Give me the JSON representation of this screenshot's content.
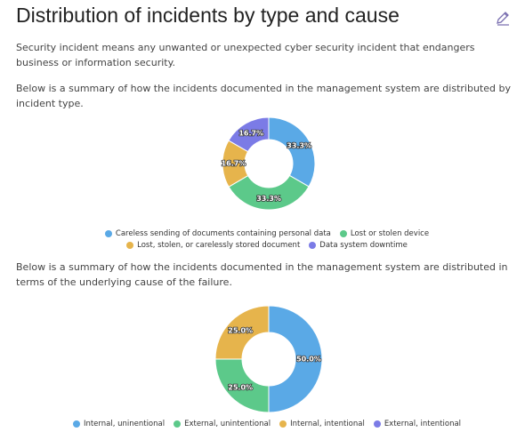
{
  "header": {
    "title": "Distribution of incidents by type and cause"
  },
  "paragraphs": [
    "Security incident means any unwanted or unexpected cyber security incident that endangers business or information security.",
    "Below is a summary of how the incidents documented in the management system are distributed by incident type.",
    "Below is a summary of how the incidents documented in the management system are distributed in terms of the underlying cause of the failure."
  ],
  "chart_data": [
    {
      "type": "pie",
      "categories": [
        "Careless sending of documents containing personal data",
        "Lost or stolen device",
        "Lost, stolen, or carelessly stored document",
        "Data system downtime"
      ],
      "values": [
        33.3,
        33.3,
        16.7,
        16.7
      ],
      "value_labels": [
        "33.3%",
        "33.3%",
        "16.7%",
        "16.7%"
      ],
      "colors": [
        "#5aa9e6",
        "#5cc98a",
        "#e6b44c",
        "#7b7be6"
      ]
    },
    {
      "type": "pie",
      "categories": [
        "Internal, uninentional",
        "External, unintentional",
        "Internal, intentional",
        "External, intentional"
      ],
      "values": [
        50,
        25,
        25,
        0
      ],
      "value_labels": [
        "50.0%",
        "25.0%",
        "25.0%",
        null
      ],
      "colors": [
        "#5aa9e6",
        "#5cc98a",
        "#e6b44c",
        "#7b7be6"
      ]
    }
  ]
}
